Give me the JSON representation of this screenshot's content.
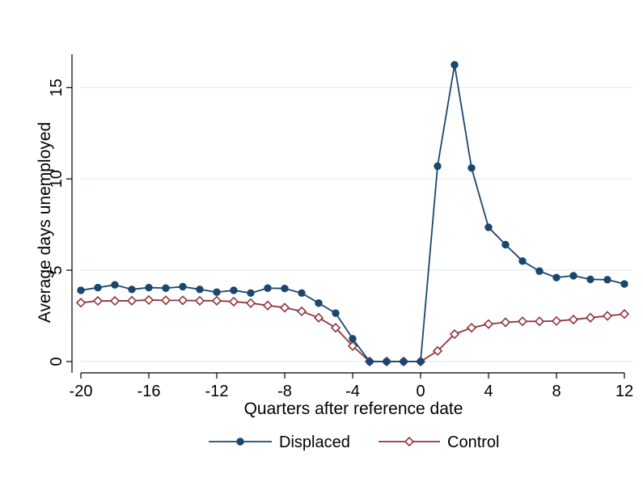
{
  "chart_data": {
    "type": "line",
    "title": "",
    "xlabel": "Quarters after reference date",
    "ylabel": "Average days unemployed",
    "xlim": [
      -20,
      12
    ],
    "ylim": [
      0,
      16.3
    ],
    "xticks": [
      -20,
      -16,
      -12,
      -8,
      -4,
      0,
      4,
      8,
      12
    ],
    "yticks": [
      0,
      5,
      10,
      15
    ],
    "grid": true,
    "legend": "bottom",
    "x": [
      -20,
      -19,
      -18,
      -17,
      -16,
      -15,
      -14,
      -13,
      -12,
      -11,
      -10,
      -9,
      -8,
      -7,
      -6,
      -5,
      -4,
      -3,
      -2,
      -1,
      0,
      1,
      2,
      3,
      4,
      5,
      6,
      7,
      8,
      9,
      10,
      11,
      12
    ],
    "series": [
      {
        "name": "Displaced",
        "color": "#1a476f",
        "marker": "filled-circle",
        "values": [
          3.9,
          4.05,
          4.2,
          3.95,
          4.05,
          4.02,
          4.1,
          3.95,
          3.8,
          3.9,
          3.75,
          4.02,
          4.0,
          3.75,
          3.2,
          2.65,
          1.25,
          0.0,
          0.0,
          0.0,
          0.0,
          10.7,
          16.25,
          10.6,
          7.35,
          6.4,
          5.5,
          4.95,
          4.6,
          4.7,
          4.5,
          4.48,
          4.25
        ]
      },
      {
        "name": "Control",
        "color": "#90353b",
        "marker": "hollow-diamond",
        "values": [
          3.22,
          3.32,
          3.32,
          3.33,
          3.37,
          3.35,
          3.35,
          3.33,
          3.33,
          3.28,
          3.2,
          3.07,
          2.95,
          2.75,
          2.4,
          1.85,
          0.85,
          0.0,
          0.0,
          0.0,
          0.0,
          0.58,
          1.5,
          1.85,
          2.05,
          2.15,
          2.2,
          2.2,
          2.22,
          2.3,
          2.4,
          2.5,
          2.6
        ]
      }
    ]
  }
}
